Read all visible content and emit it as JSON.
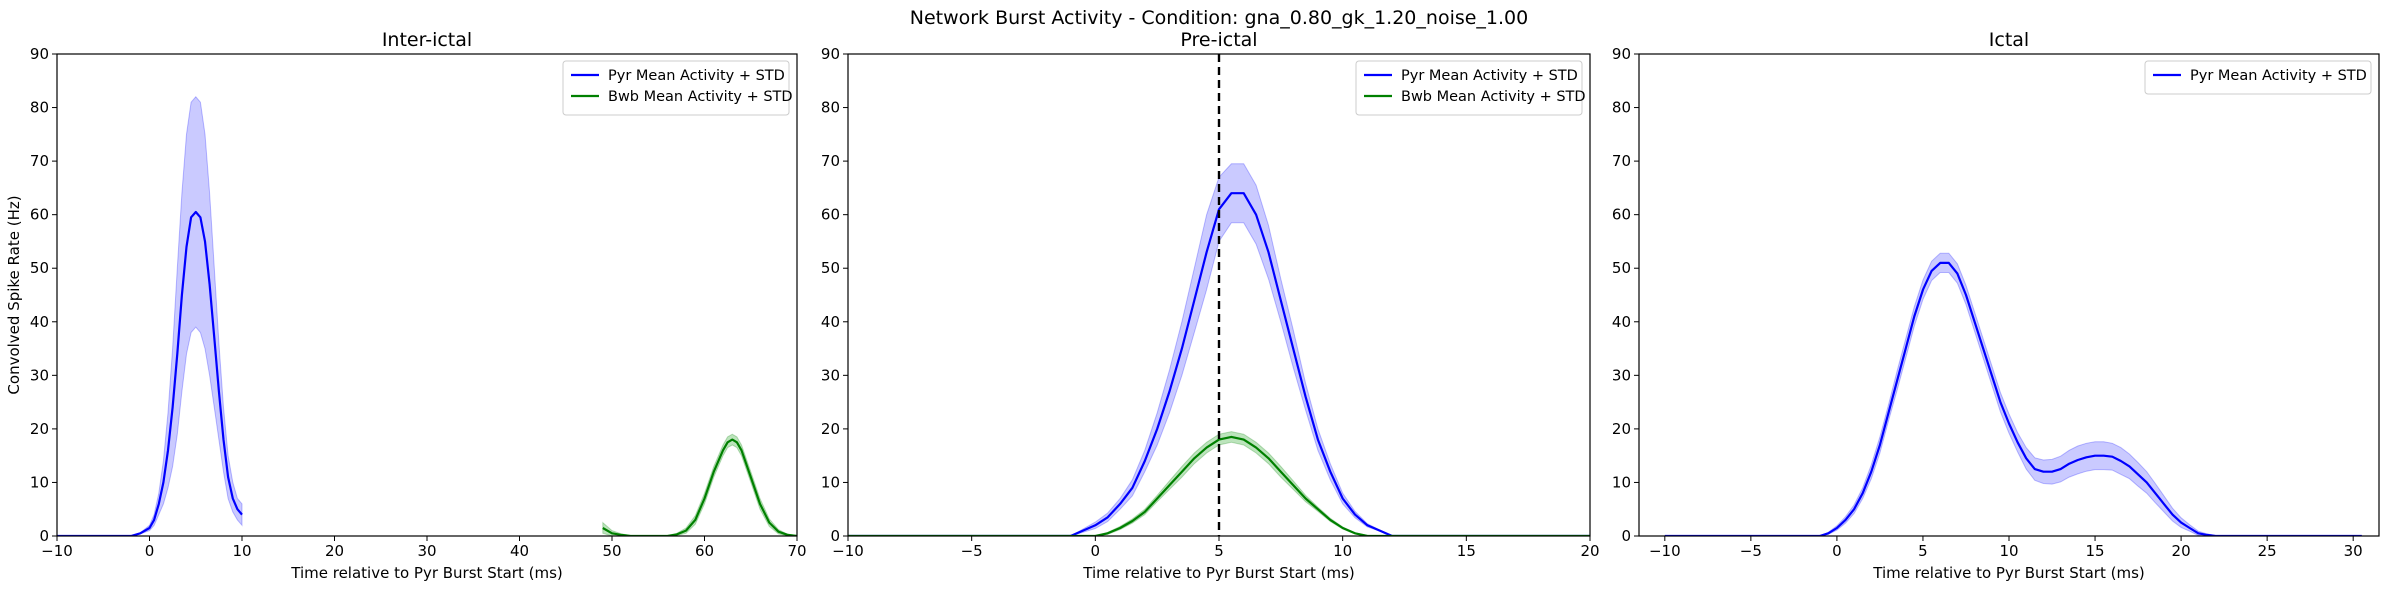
{
  "figure": {
    "suptitle": "Network Burst Activity - Condition: gna_0.80_gk_1.20_noise_1.00"
  },
  "colors": {
    "pyr": "#0000ff",
    "pyr_fill": "#8080ff",
    "bwb": "#008000",
    "bwb_fill": "#5fbf5f",
    "vline": "#000000"
  },
  "chart_data": [
    {
      "type": "line",
      "title": "Inter-ictal",
      "xlabel": "Time relative to Pyr Burst Start (ms)",
      "ylabel": "Convolved Spike Rate (Hz)",
      "xlim": [
        -10,
        70
      ],
      "ylim": [
        0,
        90
      ],
      "xticks": [
        -10,
        0,
        10,
        20,
        30,
        40,
        50,
        60,
        70
      ],
      "yticks": [
        0,
        10,
        20,
        30,
        40,
        50,
        60,
        70,
        80,
        90
      ],
      "grid": false,
      "legend_position": "upper right",
      "vline": null,
      "series": [
        {
          "name": "Pyr Mean Activity + STD",
          "color": "pyr",
          "x": [
            -10,
            -2,
            -1,
            0,
            0.5,
            1,
            1.5,
            2,
            2.5,
            3,
            3.5,
            4,
            4.5,
            5,
            5.5,
            6,
            6.5,
            7,
            7.5,
            8,
            8.5,
            9,
            9.5,
            10
          ],
          "mean": [
            0,
            0,
            0.5,
            1.5,
            3,
            6,
            10,
            16,
            24,
            34,
            45,
            54,
            59.5,
            60.5,
            59.5,
            55,
            47,
            37,
            27,
            18,
            11,
            7,
            5,
            4
          ],
          "upper": [
            0,
            0,
            0.6,
            2,
            4,
            8,
            14,
            23,
            35,
            50,
            64,
            75,
            81,
            82,
            81,
            75,
            64,
            50,
            36,
            24,
            15,
            10,
            7,
            6
          ],
          "lower": [
            0,
            0,
            0.4,
            1,
            2,
            4,
            6,
            9,
            13,
            19,
            27,
            34,
            38,
            39,
            38,
            35,
            30,
            24,
            18,
            12,
            7,
            4.5,
            3,
            2
          ]
        },
        {
          "name": "Bwb Mean Activity + STD",
          "color": "bwb",
          "x": [
            49,
            50,
            51,
            52,
            54,
            56,
            57,
            58,
            59,
            60,
            61,
            62,
            62.5,
            63,
            63.5,
            64,
            65,
            66,
            67,
            68,
            69,
            70
          ],
          "mean": [
            1.5,
            0.5,
            0.2,
            0,
            0,
            0,
            0.3,
            1,
            3,
            7,
            12,
            16,
            17.5,
            18,
            17.5,
            16,
            11,
            6,
            2.5,
            0.8,
            0.2,
            0
          ],
          "upper": [
            2.5,
            1,
            0.4,
            0.1,
            0,
            0.1,
            0.5,
            1.5,
            3.8,
            8,
            13,
            17,
            18.5,
            19,
            18.5,
            17,
            12,
            7,
            3.2,
            1.2,
            0.3,
            0.1
          ],
          "lower": [
            0.5,
            0,
            0,
            0,
            0,
            0,
            0.1,
            0.5,
            2.2,
            6,
            11,
            15,
            16.5,
            17,
            16.5,
            15,
            10,
            5,
            1.8,
            0.4,
            0,
            0
          ]
        }
      ]
    },
    {
      "type": "line",
      "title": "Pre-ictal",
      "xlabel": "Time relative to Pyr Burst Start (ms)",
      "ylabel": "",
      "xlim": [
        -10,
        20
      ],
      "ylim": [
        0,
        90
      ],
      "xticks": [
        -10,
        -5,
        0,
        5,
        10,
        15,
        20
      ],
      "yticks": [
        0,
        10,
        20,
        30,
        40,
        50,
        60,
        70,
        80,
        90
      ],
      "grid": false,
      "legend_position": "upper right",
      "vline": 5,
      "series": [
        {
          "name": "Pyr Mean Activity + STD",
          "color": "pyr",
          "x": [
            -10,
            -1,
            -0.5,
            0,
            0.5,
            1,
            1.5,
            2,
            2.5,
            3,
            3.5,
            4,
            4.5,
            5,
            5.5,
            6,
            6.5,
            7,
            7.5,
            8,
            8.5,
            9,
            9.5,
            10,
            10.5,
            11,
            11.5,
            12,
            20
          ],
          "mean": [
            0,
            0,
            1,
            2,
            3.5,
            6,
            9,
            14,
            20,
            27,
            35,
            44,
            53,
            61,
            64,
            64,
            60,
            53,
            44,
            35,
            26,
            18,
            12,
            7,
            4,
            2,
            1,
            0,
            0
          ],
          "upper": [
            0,
            0,
            1.3,
            2.6,
            4.3,
            7,
            10.5,
            16,
            23,
            31,
            40,
            50,
            60,
            67,
            69.5,
            69.5,
            65.5,
            58,
            48,
            38.5,
            28.5,
            20,
            13.5,
            8,
            4.6,
            2.3,
            1.1,
            0.1,
            0
          ],
          "lower": [
            0,
            0,
            0.7,
            1.4,
            2.7,
            5,
            7.5,
            12,
            17,
            23,
            30,
            38,
            46,
            55,
            58.5,
            58.5,
            54.5,
            48,
            40,
            31.5,
            23.5,
            16,
            10.5,
            6,
            3.4,
            1.7,
            0.9,
            0,
            0
          ]
        },
        {
          "name": "Bwb Mean Activity + STD",
          "color": "bwb",
          "x": [
            -10,
            0,
            0.5,
            1,
            1.5,
            2,
            2.5,
            3,
            3.5,
            4,
            4.5,
            5,
            5.5,
            6,
            6.5,
            7,
            7.5,
            8,
            8.5,
            9,
            9.5,
            10,
            10.5,
            11,
            20
          ],
          "mean": [
            0,
            0,
            0.5,
            1.5,
            2.8,
            4.5,
            7,
            9.5,
            12,
            14.5,
            16.5,
            18,
            18.5,
            18,
            16.5,
            14.5,
            12,
            9.5,
            7,
            5,
            3,
            1.5,
            0.5,
            0,
            0
          ],
          "upper": [
            0,
            0,
            0.7,
            1.8,
            3.2,
            5,
            7.6,
            10.3,
            13,
            15.5,
            17.5,
            19,
            19.5,
            19,
            17.5,
            15.5,
            13,
            10.3,
            7.6,
            5.4,
            3.3,
            1.7,
            0.6,
            0.1,
            0
          ],
          "lower": [
            0,
            0,
            0.3,
            1.2,
            2.4,
            4,
            6.4,
            8.7,
            11,
            13.5,
            15.5,
            17,
            17.5,
            17,
            15.5,
            13.5,
            11,
            8.7,
            6.4,
            4.6,
            2.7,
            1.3,
            0.4,
            0,
            0
          ]
        }
      ]
    },
    {
      "type": "line",
      "title": "Ictal",
      "xlabel": "Time relative to Pyr Burst Start (ms)",
      "ylabel": "",
      "xlim": [
        -11.5,
        31.5
      ],
      "ylim": [
        0,
        90
      ],
      "xticks": [
        -10,
        -5,
        0,
        5,
        10,
        15,
        20,
        25,
        30
      ],
      "yticks": [
        0,
        10,
        20,
        30,
        40,
        50,
        60,
        70,
        80,
        90
      ],
      "grid": false,
      "legend_position": "upper right",
      "vline": null,
      "series": [
        {
          "name": "Pyr Mean Activity + STD",
          "color": "pyr",
          "x": [
            -10,
            -1,
            -0.5,
            0,
            0.5,
            1,
            1.5,
            2,
            2.5,
            3,
            3.5,
            4,
            4.5,
            5,
            5.5,
            6,
            6.5,
            7,
            7.5,
            8,
            8.5,
            9,
            9.5,
            10,
            10.5,
            11,
            11.5,
            12,
            12.5,
            13,
            13.5,
            14,
            14.5,
            15,
            15.5,
            16,
            16.5,
            17,
            17.5,
            18,
            18.5,
            19,
            19.5,
            20,
            20.5,
            21,
            21.5,
            22,
            30.5
          ],
          "mean": [
            0,
            0,
            0.5,
            1.5,
            3,
            5,
            8,
            12,
            17,
            23,
            29,
            35,
            41,
            46,
            49.5,
            51,
            51,
            49,
            45,
            40,
            35,
            30,
            25,
            21,
            17.5,
            14.5,
            12.5,
            12,
            12,
            12.5,
            13.5,
            14.2,
            14.7,
            15,
            15,
            14.8,
            14,
            13,
            11.5,
            10,
            8,
            6,
            4,
            2.5,
            1.5,
            0.5,
            0.2,
            0,
            0
          ],
          "upper": [
            0,
            0,
            0.7,
            1.9,
            3.6,
            5.8,
            9,
            13.3,
            18.5,
            24.5,
            30.8,
            36.8,
            42.8,
            47.8,
            51.3,
            52.8,
            52.8,
            50.8,
            46.8,
            41.8,
            36.8,
            31.8,
            26.8,
            22.8,
            19.3,
            16.5,
            14.6,
            14.2,
            14.3,
            14.9,
            16,
            16.8,
            17.3,
            17.6,
            17.6,
            17.3,
            16.5,
            15.3,
            13.7,
            12,
            9.8,
            7.5,
            5.2,
            3.4,
            2.1,
            0.9,
            0.4,
            0.1,
            0
          ],
          "lower": [
            0,
            0,
            0.3,
            1.1,
            2.4,
            4.2,
            7,
            10.7,
            15.5,
            21.5,
            27.2,
            33.2,
            39.2,
            44.2,
            47.7,
            49.2,
            49.2,
            47.2,
            43.2,
            38.2,
            33.2,
            28.2,
            23.2,
            19.2,
            15.7,
            12.5,
            10.4,
            9.8,
            9.7,
            10.1,
            11,
            11.6,
            12.1,
            12.4,
            12.4,
            12.3,
            11.5,
            10.7,
            9.3,
            8,
            6.2,
            4.5,
            2.8,
            1.6,
            0.9,
            0.1,
            0,
            0,
            0
          ]
        }
      ]
    }
  ]
}
